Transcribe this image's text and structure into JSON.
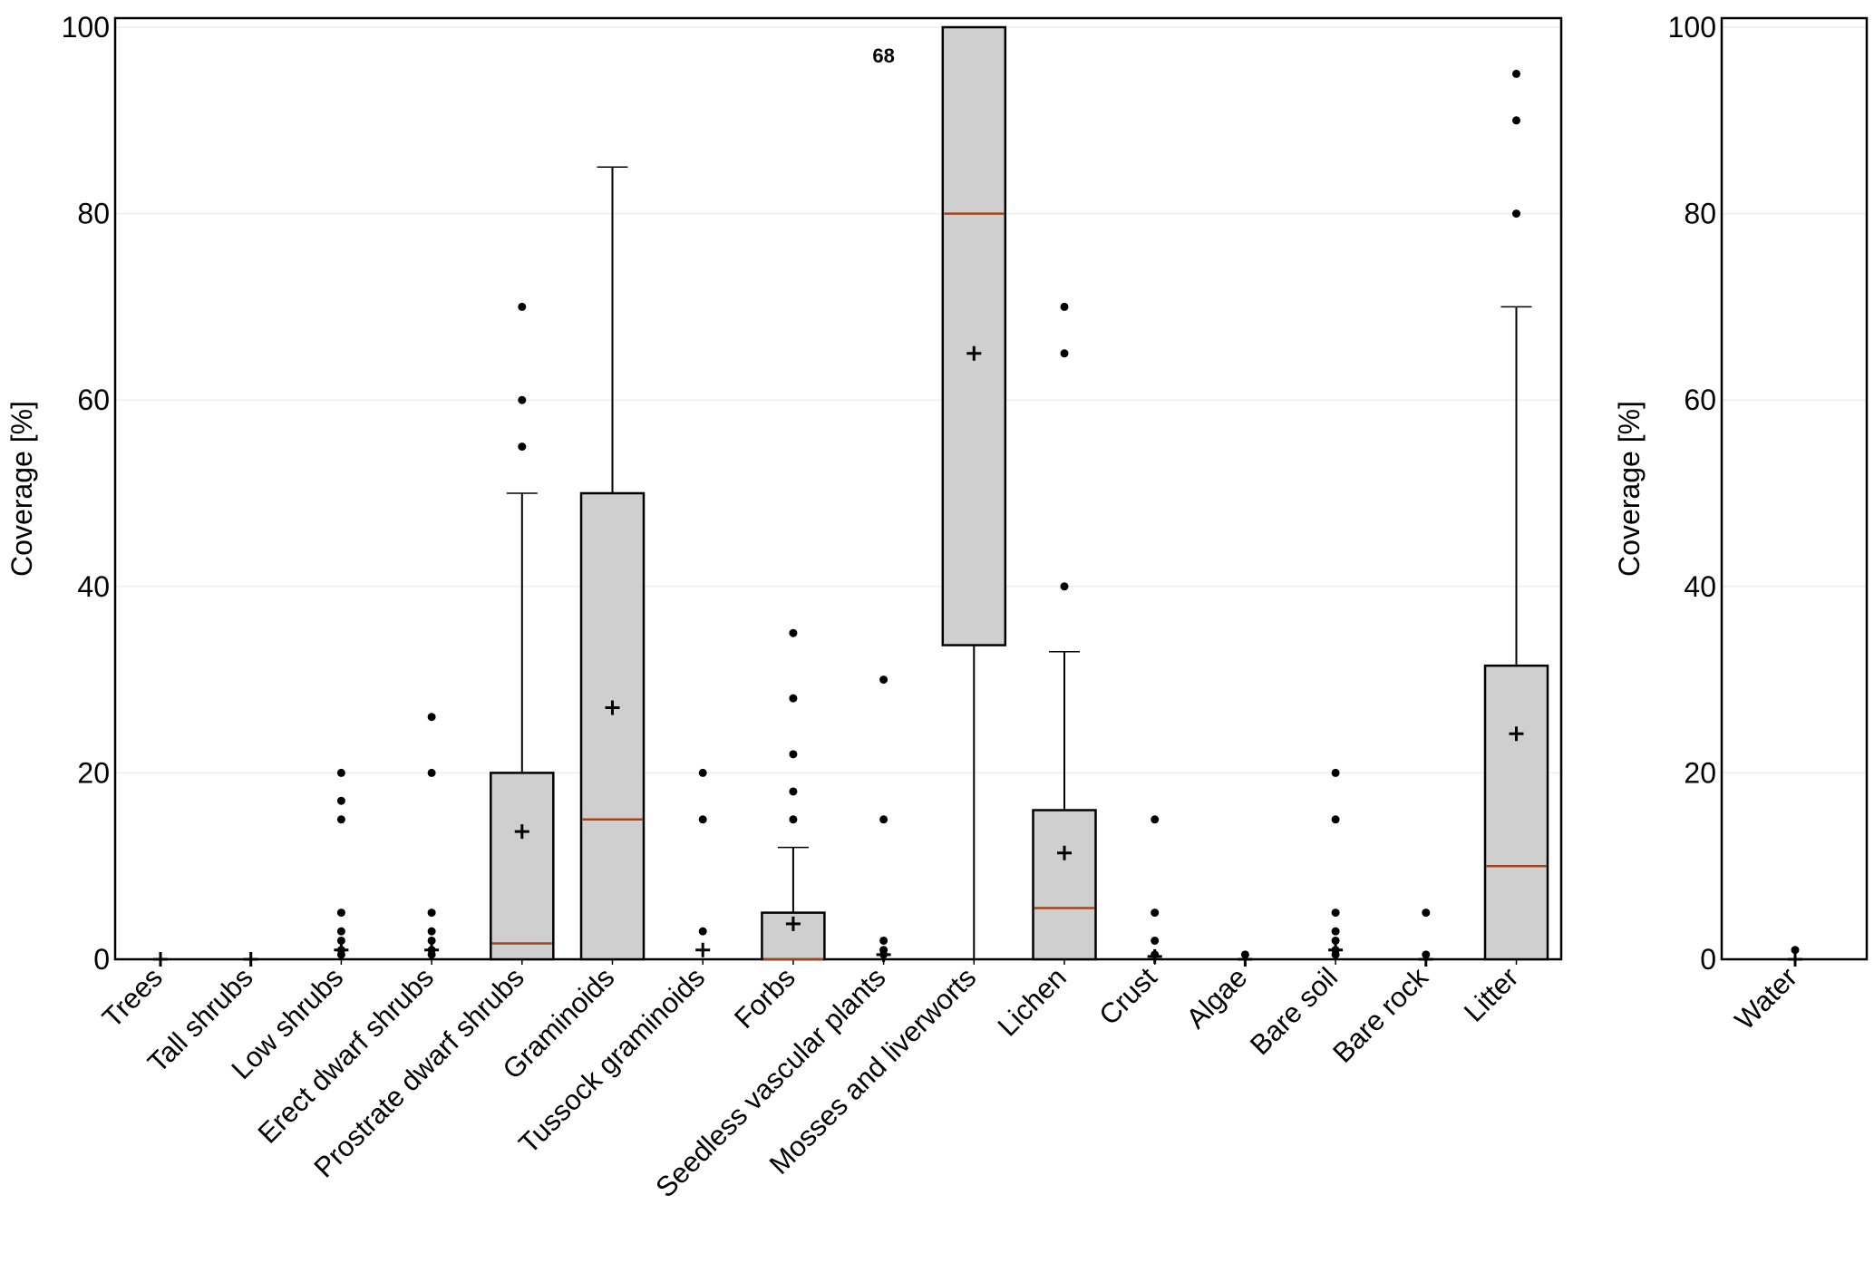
{
  "chart_data": [
    {
      "type": "box",
      "ylabel": "Coverage [%]",
      "ylim": [
        0,
        100
      ],
      "yticks": [
        0,
        20,
        40,
        60,
        80,
        100
      ],
      "grid": "horizontal",
      "colors": {
        "box_fill": "#d0cfcf",
        "median": "#a0461e",
        "outline": "#000000"
      },
      "annotation": {
        "text": "68",
        "category": "Seedless vascular plants",
        "y": 97
      },
      "categories": [
        "Trees",
        "Tall shrubs",
        "Low shrubs",
        "Erect dwarf shrubs",
        "Prostrate dwarf shrubs",
        "Graminoids",
        "Tussock graminoids",
        "Forbs",
        "Seedless vascular plants",
        "Mosses and liverworts",
        "Lichen",
        "Crust",
        "Algae",
        "Bare soil",
        "Bare rock",
        "Litter"
      ],
      "boxes": [
        {
          "q1": 0,
          "median": 0,
          "q3": 0,
          "whisker_low": 0,
          "whisker_high": 0,
          "mean": 0,
          "outliers": []
        },
        {
          "q1": 0,
          "median": 0,
          "q3": 0,
          "whisker_low": 0,
          "whisker_high": 0,
          "mean": 0,
          "outliers": []
        },
        {
          "q1": 0,
          "median": 0,
          "q3": 0,
          "whisker_low": 0,
          "whisker_high": 0,
          "mean": 1,
          "outliers": [
            20,
            17,
            15,
            5,
            3,
            2,
            1,
            0.5
          ]
        },
        {
          "q1": 0,
          "median": 0,
          "q3": 0,
          "whisker_low": 0,
          "whisker_high": 0,
          "mean": 1,
          "outliers": [
            26,
            20,
            5,
            3,
            2,
            1,
            0.5
          ]
        },
        {
          "q1": 0,
          "median": 1.7,
          "q3": 20,
          "whisker_low": 0,
          "whisker_high": 50,
          "mean": 13.7,
          "outliers": [
            70,
            60,
            55
          ]
        },
        {
          "q1": 0,
          "median": 15,
          "q3": 50,
          "whisker_low": 0,
          "whisker_high": 85,
          "mean": 27,
          "outliers": []
        },
        {
          "q1": 0,
          "median": 0,
          "q3": 0,
          "whisker_low": 0,
          "whisker_high": 0,
          "mean": 1,
          "outliers": [
            20,
            15,
            3
          ]
        },
        {
          "q1": 0,
          "median": 0,
          "q3": 5,
          "whisker_low": 0,
          "whisker_high": 12,
          "mean": 3.8,
          "outliers": [
            35,
            28,
            22,
            18,
            15
          ]
        },
        {
          "q1": 0,
          "median": 0,
          "q3": 0,
          "whisker_low": 0,
          "whisker_high": 0,
          "mean": 0.5,
          "outliers": [
            30,
            15,
            2,
            1,
            0.5
          ]
        },
        {
          "q1": 33.7,
          "median": 80,
          "q3": 100,
          "whisker_low": 0,
          "whisker_high": 100,
          "mean": 65,
          "outliers": []
        },
        {
          "q1": 0,
          "median": 5.5,
          "q3": 16,
          "whisker_low": 0,
          "whisker_high": 33,
          "mean": 11.4,
          "outliers": [
            70,
            65,
            40
          ]
        },
        {
          "q1": 0,
          "median": 0,
          "q3": 0,
          "whisker_low": 0,
          "whisker_high": 0,
          "mean": 0.3,
          "outliers": [
            15,
            5,
            2,
            0.5
          ]
        },
        {
          "q1": 0,
          "median": 0,
          "q3": 0,
          "whisker_low": 0,
          "whisker_high": 0,
          "mean": 0,
          "outliers": [
            0.5
          ]
        },
        {
          "q1": 0,
          "median": 0,
          "q3": 0,
          "whisker_low": 0,
          "whisker_high": 0,
          "mean": 1,
          "outliers": [
            20,
            15,
            5,
            3,
            2,
            1,
            0.5
          ]
        },
        {
          "q1": 0,
          "median": 0,
          "q3": 0,
          "whisker_low": 0,
          "whisker_high": 0,
          "mean": 0,
          "outliers": [
            5,
            0.5
          ]
        },
        {
          "q1": 0,
          "median": 10,
          "q3": 31.5,
          "whisker_low": 0,
          "whisker_high": 70,
          "mean": 24.2,
          "outliers": [
            95,
            90,
            80
          ]
        }
      ]
    },
    {
      "type": "box",
      "ylabel": "Coverage [%]",
      "ylim": [
        0,
        100
      ],
      "yticks": [
        0,
        20,
        40,
        60,
        80,
        100
      ],
      "grid": "horizontal",
      "categories": [
        "Water"
      ],
      "boxes": [
        {
          "q1": 0,
          "median": 0,
          "q3": 0,
          "whisker_low": 0,
          "whisker_high": 0,
          "mean": 0,
          "outliers": [
            1
          ]
        }
      ]
    }
  ]
}
